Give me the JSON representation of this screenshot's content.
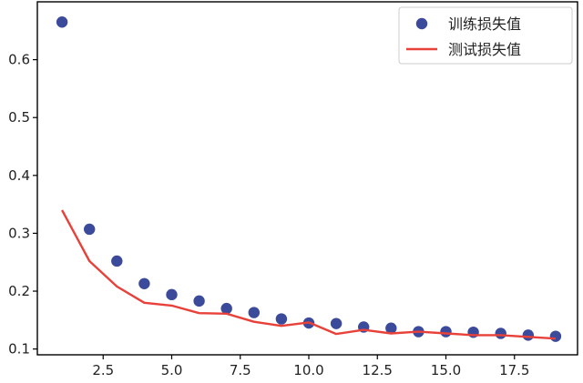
{
  "chart_data": {
    "type": "scatter",
    "title": "",
    "xlabel": "",
    "ylabel": "",
    "xlim": [
      0.1,
      19.8
    ],
    "ylim": [
      0.09,
      0.7
    ],
    "grid": false,
    "legend_position": "top-right",
    "x_ticks": [
      2.5,
      5.0,
      7.5,
      10.0,
      12.5,
      15.0,
      17.5
    ],
    "x_tick_labels": [
      "2.5",
      "5.0",
      "7.5",
      "10.0",
      "12.5",
      "15.0",
      "17.5"
    ],
    "y_ticks": [
      0.1,
      0.2,
      0.3,
      0.4,
      0.5,
      0.6
    ],
    "y_tick_labels": [
      "0.1",
      "0.2",
      "0.3",
      "0.4",
      "0.5",
      "0.6"
    ],
    "series": [
      {
        "name": "训练损失值",
        "mark": "point",
        "color": "#3b4a9a",
        "x": [
          1,
          2,
          3,
          4,
          5,
          6,
          7,
          8,
          9,
          10,
          11,
          12,
          13,
          14,
          15,
          16,
          17,
          18,
          19
        ],
        "y": [
          0.665,
          0.307,
          0.252,
          0.213,
          0.194,
          0.183,
          0.17,
          0.163,
          0.152,
          0.145,
          0.144,
          0.138,
          0.136,
          0.13,
          0.13,
          0.129,
          0.127,
          0.124,
          0.122
        ]
      },
      {
        "name": "测试损失值",
        "mark": "line",
        "color": "#e8413a",
        "x": [
          1,
          2,
          3,
          4,
          5,
          6,
          7,
          8,
          9,
          10,
          11,
          12,
          13,
          14,
          15,
          16,
          17,
          18,
          19
        ],
        "y": [
          0.34,
          0.252,
          0.208,
          0.18,
          0.175,
          0.162,
          0.161,
          0.147,
          0.14,
          0.146,
          0.126,
          0.133,
          0.127,
          0.13,
          0.127,
          0.124,
          0.124,
          0.121,
          0.118
        ]
      }
    ]
  }
}
